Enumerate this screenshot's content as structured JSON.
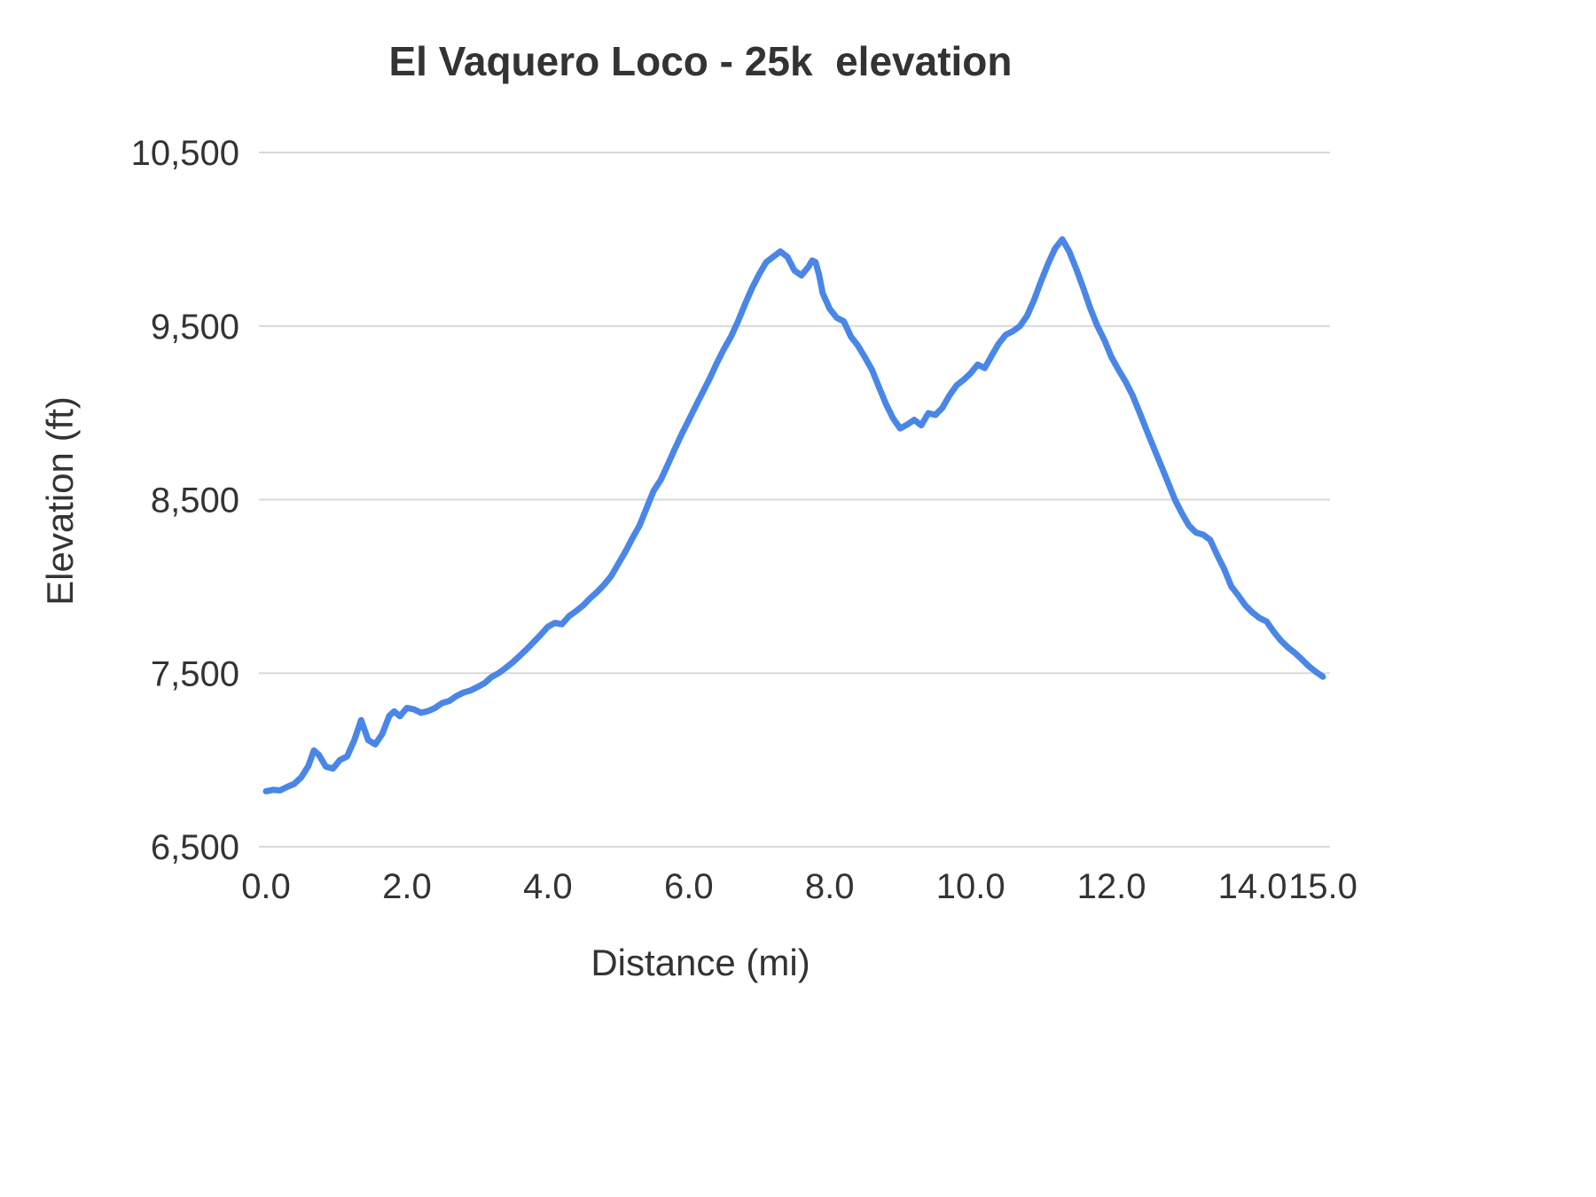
{
  "chart_data": {
    "type": "line",
    "title": "El Vaquero Loco - 25k  elevation",
    "xlabel": "Distance (mi)",
    "ylabel": "Elevation (ft)",
    "xlim": [
      0.0,
      15.0
    ],
    "ylim": [
      6500,
      10500
    ],
    "grid": "horizontal-only",
    "legend": "none",
    "line_color": "#4a86e8",
    "line_width": 7,
    "grid_color": "#d9d9d9",
    "text_color": "#333333",
    "x_ticks": [
      {
        "v": 0.0,
        "label": "0.0"
      },
      {
        "v": 2.0,
        "label": "2.0"
      },
      {
        "v": 4.0,
        "label": "4.0"
      },
      {
        "v": 6.0,
        "label": "6.0"
      },
      {
        "v": 8.0,
        "label": "8.0"
      },
      {
        "v": 10.0,
        "label": "10.0"
      },
      {
        "v": 12.0,
        "label": "12.0"
      },
      {
        "v": 14.0,
        "label": "14.0"
      },
      {
        "v": 15.0,
        "label": "15.0"
      }
    ],
    "y_ticks": [
      {
        "v": 6500,
        "label": "6,500"
      },
      {
        "v": 7500,
        "label": "7,500"
      },
      {
        "v": 8500,
        "label": "8,500"
      },
      {
        "v": 9500,
        "label": "9,500"
      },
      {
        "v": 10500,
        "label": "10,500"
      }
    ],
    "series": [
      {
        "name": "Elevation (ft)",
        "points": [
          [
            0.0,
            6820
          ],
          [
            0.1,
            6828
          ],
          [
            0.2,
            6825
          ],
          [
            0.3,
            6845
          ],
          [
            0.4,
            6862
          ],
          [
            0.5,
            6900
          ],
          [
            0.6,
            6965
          ],
          [
            0.68,
            7055
          ],
          [
            0.75,
            7030
          ],
          [
            0.85,
            6962
          ],
          [
            0.95,
            6950
          ],
          [
            1.05,
            7000
          ],
          [
            1.15,
            7020
          ],
          [
            1.25,
            7110
          ],
          [
            1.35,
            7230
          ],
          [
            1.45,
            7115
          ],
          [
            1.55,
            7090
          ],
          [
            1.65,
            7150
          ],
          [
            1.75,
            7255
          ],
          [
            1.82,
            7280
          ],
          [
            1.9,
            7252
          ],
          [
            2.0,
            7300
          ],
          [
            2.1,
            7292
          ],
          [
            2.2,
            7272
          ],
          [
            2.3,
            7282
          ],
          [
            2.4,
            7300
          ],
          [
            2.5,
            7328
          ],
          [
            2.6,
            7340
          ],
          [
            2.7,
            7368
          ],
          [
            2.8,
            7388
          ],
          [
            2.9,
            7400
          ],
          [
            3.0,
            7420
          ],
          [
            3.1,
            7442
          ],
          [
            3.2,
            7478
          ],
          [
            3.3,
            7500
          ],
          [
            3.4,
            7530
          ],
          [
            3.5,
            7562
          ],
          [
            3.6,
            7600
          ],
          [
            3.7,
            7638
          ],
          [
            3.8,
            7680
          ],
          [
            3.9,
            7722
          ],
          [
            4.0,
            7768
          ],
          [
            4.1,
            7790
          ],
          [
            4.2,
            7782
          ],
          [
            4.3,
            7828
          ],
          [
            4.4,
            7858
          ],
          [
            4.5,
            7890
          ],
          [
            4.6,
            7932
          ],
          [
            4.7,
            7968
          ],
          [
            4.8,
            8010
          ],
          [
            4.9,
            8060
          ],
          [
            5.0,
            8130
          ],
          [
            5.1,
            8200
          ],
          [
            5.2,
            8278
          ],
          [
            5.3,
            8350
          ],
          [
            5.4,
            8450
          ],
          [
            5.5,
            8550
          ],
          [
            5.6,
            8612
          ],
          [
            5.7,
            8700
          ],
          [
            5.8,
            8790
          ],
          [
            5.9,
            8878
          ],
          [
            6.0,
            8958
          ],
          [
            6.1,
            9040
          ],
          [
            6.2,
            9120
          ],
          [
            6.3,
            9200
          ],
          [
            6.4,
            9288
          ],
          [
            6.5,
            9368
          ],
          [
            6.6,
            9440
          ],
          [
            6.7,
            9528
          ],
          [
            6.8,
            9628
          ],
          [
            6.9,
            9720
          ],
          [
            7.0,
            9800
          ],
          [
            7.1,
            9868
          ],
          [
            7.2,
            9900
          ],
          [
            7.3,
            9930
          ],
          [
            7.4,
            9898
          ],
          [
            7.5,
            9820
          ],
          [
            7.6,
            9792
          ],
          [
            7.7,
            9842
          ],
          [
            7.75,
            9878
          ],
          [
            7.8,
            9868
          ],
          [
            7.85,
            9795
          ],
          [
            7.9,
            9690
          ],
          [
            8.0,
            9600
          ],
          [
            8.1,
            9548
          ],
          [
            8.2,
            9528
          ],
          [
            8.3,
            9440
          ],
          [
            8.4,
            9388
          ],
          [
            8.5,
            9320
          ],
          [
            8.6,
            9248
          ],
          [
            8.7,
            9148
          ],
          [
            8.8,
            9050
          ],
          [
            8.9,
            8968
          ],
          [
            9.0,
            8910
          ],
          [
            9.1,
            8932
          ],
          [
            9.2,
            8960
          ],
          [
            9.3,
            8928
          ],
          [
            9.4,
            8998
          ],
          [
            9.5,
            8988
          ],
          [
            9.6,
            9030
          ],
          [
            9.7,
            9100
          ],
          [
            9.8,
            9158
          ],
          [
            9.9,
            9190
          ],
          [
            10.0,
            9228
          ],
          [
            10.1,
            9278
          ],
          [
            10.2,
            9258
          ],
          [
            10.3,
            9330
          ],
          [
            10.4,
            9400
          ],
          [
            10.5,
            9450
          ],
          [
            10.6,
            9470
          ],
          [
            10.7,
            9500
          ],
          [
            10.8,
            9558
          ],
          [
            10.9,
            9650
          ],
          [
            11.0,
            9758
          ],
          [
            11.1,
            9860
          ],
          [
            11.2,
            9948
          ],
          [
            11.3,
            10000
          ],
          [
            11.4,
            9930
          ],
          [
            11.5,
            9828
          ],
          [
            11.6,
            9718
          ],
          [
            11.7,
            9600
          ],
          [
            11.8,
            9500
          ],
          [
            11.9,
            9418
          ],
          [
            12.0,
            9320
          ],
          [
            12.1,
            9248
          ],
          [
            12.2,
            9180
          ],
          [
            12.3,
            9100
          ],
          [
            12.4,
            9000
          ],
          [
            12.5,
            8898
          ],
          [
            12.6,
            8798
          ],
          [
            12.7,
            8700
          ],
          [
            12.8,
            8600
          ],
          [
            12.9,
            8500
          ],
          [
            13.0,
            8420
          ],
          [
            13.1,
            8350
          ],
          [
            13.2,
            8310
          ],
          [
            13.3,
            8298
          ],
          [
            13.4,
            8268
          ],
          [
            13.5,
            8180
          ],
          [
            13.6,
            8100
          ],
          [
            13.7,
            8000
          ],
          [
            13.8,
            7948
          ],
          [
            13.9,
            7890
          ],
          [
            14.0,
            7850
          ],
          [
            14.1,
            7818
          ],
          [
            14.2,
            7798
          ],
          [
            14.3,
            7740
          ],
          [
            14.4,
            7690
          ],
          [
            14.5,
            7650
          ],
          [
            14.6,
            7618
          ],
          [
            14.7,
            7580
          ],
          [
            14.8,
            7540
          ],
          [
            14.9,
            7508
          ],
          [
            15.0,
            7480
          ]
        ]
      }
    ]
  }
}
